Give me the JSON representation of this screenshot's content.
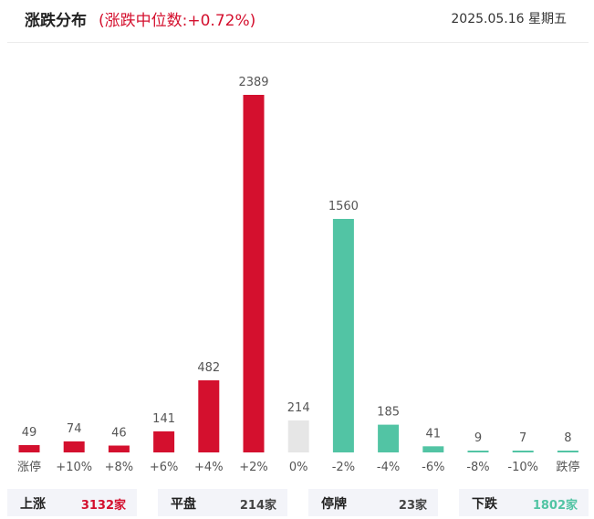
{
  "header": {
    "title": "涨跌分布",
    "subtitle": "(涨跌中位数:+0.72%)",
    "date": "2025.05.16 星期五"
  },
  "colors": {
    "up": "#d4102e",
    "flat": "#e6e6e6",
    "down": "#52c4a4",
    "label": "#555555"
  },
  "chart_data": {
    "type": "bar",
    "categories": [
      "涨停",
      "+10%",
      "+8%",
      "+6%",
      "+4%",
      "+2%",
      "0%",
      "-2%",
      "-4%",
      "-6%",
      "-8%",
      "-10%",
      "跌停"
    ],
    "values": [
      49,
      74,
      46,
      141,
      482,
      2389,
      214,
      1560,
      185,
      41,
      9,
      7,
      8
    ],
    "bar_colors": [
      "up",
      "up",
      "up",
      "up",
      "up",
      "up",
      "flat",
      "down",
      "down",
      "down",
      "down",
      "down",
      "down"
    ],
    "title": "涨跌分布",
    "xlabel": "",
    "ylabel": "",
    "ylim": [
      0,
      2389
    ],
    "grid": false,
    "legend": "none"
  },
  "summary": [
    {
      "label": "上涨",
      "value": "3132家",
      "color": "#d4102e"
    },
    {
      "label": "平盘",
      "value": "214家",
      "color": "#444444"
    },
    {
      "label": "停牌",
      "value": "23家",
      "color": "#444444"
    },
    {
      "label": "下跌",
      "value": "1802家",
      "color": "#52c4a4"
    }
  ]
}
